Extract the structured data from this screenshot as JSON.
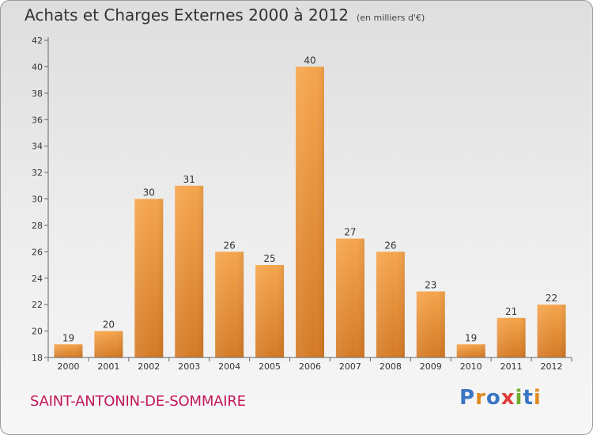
{
  "header": {
    "title": "Achats et Charges Externes 2000 à 2012",
    "unit": "(en milliers d'€)"
  },
  "footer": {
    "commune": "SAINT-ANTONIN-DE-SOMMAIRE",
    "logo": [
      "P",
      "r",
      "o",
      "x",
      "i",
      "t",
      "i"
    ],
    "logo_colors": [
      "#3a76c4",
      "#e08a1e",
      "#3a76c4",
      "#e23c3c",
      "#6fae2d",
      "#3a76c4",
      "#e08a1e"
    ]
  },
  "colors": {
    "bar_light": "#f6a54c",
    "bar_dark": "#d57a25",
    "axis": "#666666",
    "gridline": "#bdbdbd",
    "text": "#333333"
  },
  "chart_data": {
    "type": "bar",
    "title": "Achats et Charges Externes 2000 à 2012",
    "subtitle": "(en milliers d'€)",
    "categories": [
      "2000",
      "2001",
      "2002",
      "2003",
      "2004",
      "2005",
      "2006",
      "2007",
      "2008",
      "2009",
      "2010",
      "2011",
      "2012"
    ],
    "values": [
      19,
      20,
      30,
      31,
      26,
      25,
      40,
      27,
      26,
      23,
      19,
      21,
      22
    ],
    "ylim": [
      18,
      42
    ],
    "yticks": [
      18,
      20,
      22,
      24,
      26,
      28,
      30,
      32,
      34,
      36,
      38,
      40,
      42
    ],
    "xlabel": "",
    "ylabel": "",
    "grid": false
  }
}
